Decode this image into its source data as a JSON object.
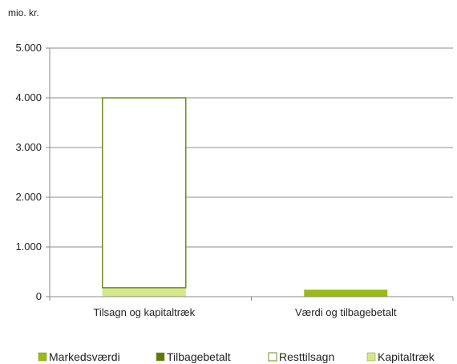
{
  "chart_data": {
    "type": "bar",
    "stacked": true,
    "unit_label": "mio. kr.",
    "categories": [
      "Tilsagn og kapitaltræk",
      "Værdi og tilbagebetalt"
    ],
    "y_ticks": [
      "0",
      "1.000",
      "2.000",
      "3.000",
      "4.000",
      "5.000"
    ],
    "ylim": [
      0,
      5000
    ],
    "grid": true,
    "legend_position": "bottom",
    "series": [
      {
        "name": "Markedsværdi",
        "color": "#9bbb14",
        "values": [
          0,
          140
        ]
      },
      {
        "name": "Tilbagebetalt",
        "color": "#5c7a10",
        "values": [
          0,
          0
        ]
      },
      {
        "name": "Resttilsagn",
        "color": "#ffffff",
        "stroke": "#6b8e23",
        "values": [
          3820,
          0
        ]
      },
      {
        "name": "Kapitaltræk",
        "color": "#d6e68a",
        "values": [
          180,
          0
        ]
      }
    ]
  }
}
